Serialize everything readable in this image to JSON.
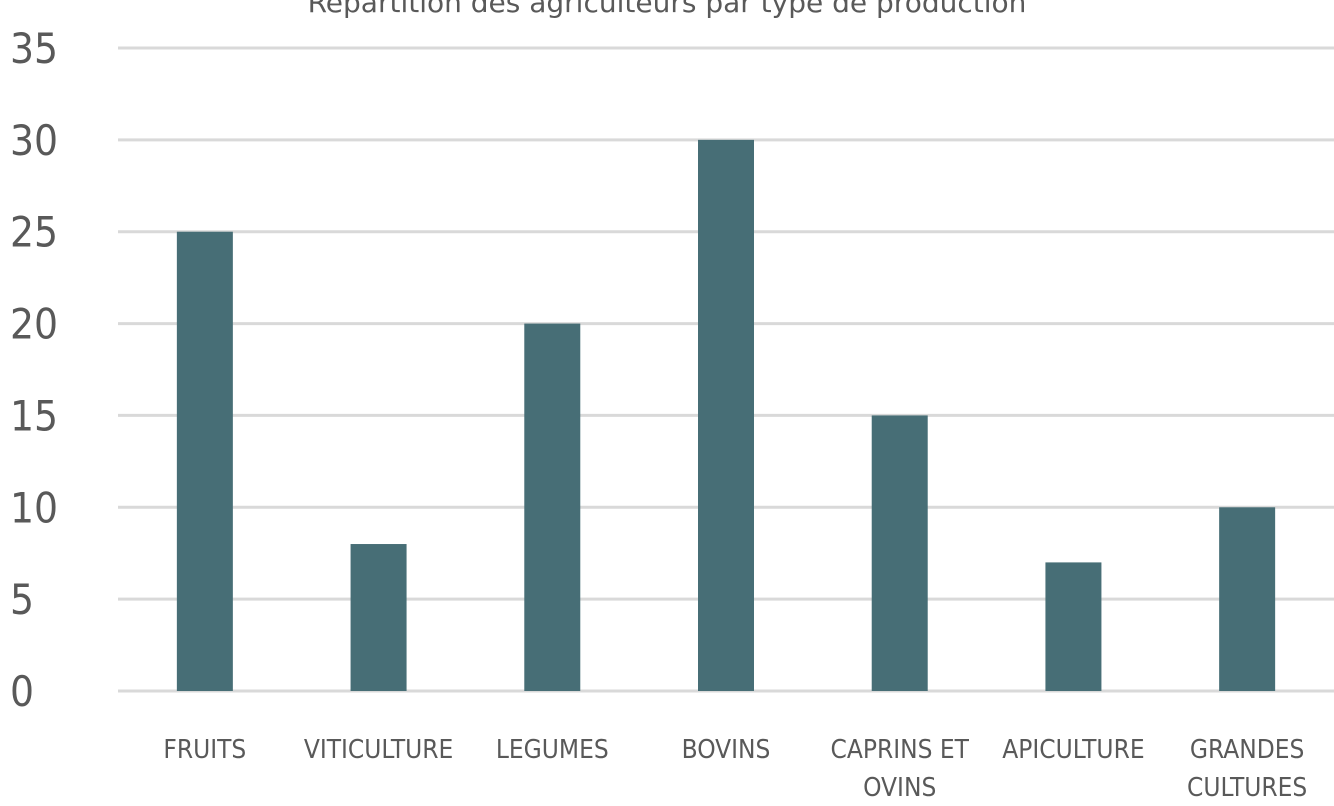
{
  "chart_data": {
    "type": "bar",
    "title": "Répartition des agriculteurs par type de production",
    "xlabel": "",
    "ylabel": "",
    "categories": [
      [
        "FRUITS"
      ],
      [
        "VITICULTURE"
      ],
      [
        "LEGUMES"
      ],
      [
        "BOVINS"
      ],
      [
        "CAPRINS ET",
        "OVINS"
      ],
      [
        "APICULTURE"
      ],
      [
        "GRANDES",
        "CULTURES"
      ]
    ],
    "values": [
      25,
      8,
      20,
      30,
      15,
      7,
      10
    ],
    "ylim": [
      0,
      35
    ],
    "yticks": [
      0,
      5,
      10,
      15,
      20,
      25,
      30,
      35
    ],
    "grid": true,
    "legend": "none",
    "colors": {
      "bar": "#476e76",
      "grid": "#d9d9d9",
      "text": "#595959"
    }
  }
}
